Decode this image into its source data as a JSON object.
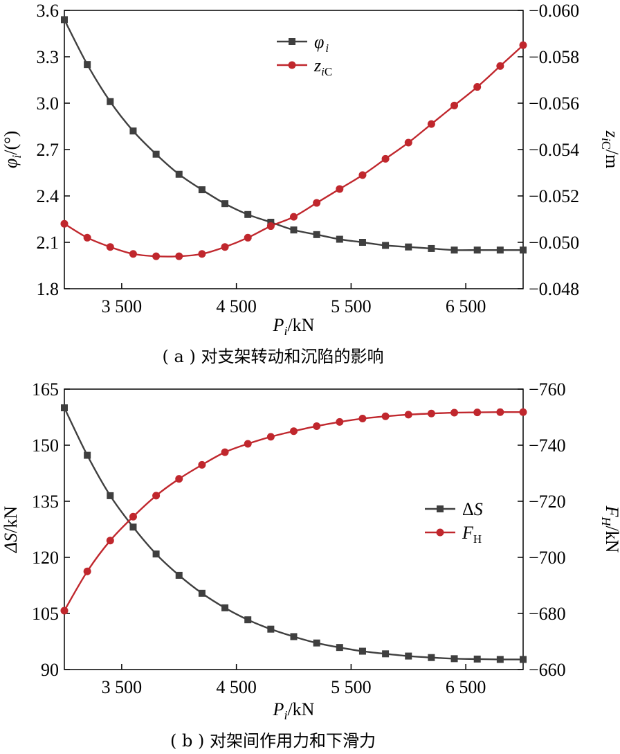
{
  "chart_data": [
    {
      "type": "line",
      "caption": "( a ) 对支架转动和沉陷的影响",
      "xlabel": {
        "base": "P",
        "sub": "i",
        "unit": "/kN"
      },
      "ylabel_left": {
        "base": "φ",
        "sub": "i",
        "unit": "/(°)"
      },
      "ylabel_right": {
        "base": "z",
        "sub": "i",
        "sub2": "C",
        "unit": "/m"
      },
      "xlim": [
        3000,
        7000
      ],
      "xticks": [
        3500,
        4500,
        5500,
        6500
      ],
      "xtick_labels": [
        "3 500",
        "4 500",
        "5 500",
        "6 500"
      ],
      "ylim_left": [
        1.8,
        3.6
      ],
      "yticks_left": [
        1.8,
        2.1,
        2.4,
        2.7,
        3.0,
        3.3,
        3.6
      ],
      "ytick_labels_left": [
        "1.8",
        "2.1",
        "2.4",
        "2.7",
        "3.0",
        "3.3",
        "3.6"
      ],
      "ylim_right": [
        -0.048,
        -0.06
      ],
      "yticks_right": [
        -0.048,
        -0.05,
        -0.052,
        -0.054,
        -0.056,
        -0.058,
        -0.06
      ],
      "ytick_labels_right": [
        "−0.048",
        "−0.050",
        "−0.052",
        "−0.054",
        "−0.056",
        "−0.058",
        "−0.060"
      ],
      "legend_position": "top-center",
      "series": [
        {
          "name": "φ i",
          "legend": {
            "base": "φ",
            "sub": "i"
          },
          "axis": "left",
          "marker": "square",
          "color": "#3f3f3f",
          "x": [
            3000,
            3200,
            3400,
            3600,
            3800,
            4000,
            4200,
            4400,
            4600,
            4800,
            5000,
            5200,
            5400,
            5600,
            5800,
            6000,
            6200,
            6400,
            6600,
            6800,
            7000
          ],
          "values": [
            3.54,
            3.25,
            3.01,
            2.82,
            2.67,
            2.54,
            2.44,
            2.35,
            2.28,
            2.23,
            2.18,
            2.15,
            2.12,
            2.1,
            2.08,
            2.07,
            2.06,
            2.05,
            2.05,
            2.05,
            2.05
          ]
        },
        {
          "name": "z iC",
          "legend": {
            "base": "z",
            "sub": "iC"
          },
          "axis": "right",
          "marker": "circle",
          "color": "#c0272d",
          "x": [
            3000,
            3200,
            3400,
            3600,
            3800,
            4000,
            4200,
            4400,
            4600,
            4800,
            5000,
            5200,
            5400,
            5600,
            5800,
            6000,
            6200,
            6400,
            6600,
            6800,
            7000
          ],
          "values": [
            -0.0508,
            -0.0502,
            -0.0498,
            -0.0495,
            -0.0494,
            -0.0494,
            -0.0495,
            -0.0498,
            -0.0502,
            -0.0507,
            -0.0511,
            -0.0517,
            -0.0523,
            -0.0529,
            -0.0536,
            -0.0543,
            -0.0551,
            -0.0559,
            -0.0567,
            -0.0576,
            -0.0585
          ]
        }
      ]
    },
    {
      "type": "line",
      "caption": "( b ) 对架间作用力和下滑力",
      "xlabel": {
        "base": "P",
        "sub": "i",
        "unit": "/kN"
      },
      "ylabel_left": {
        "base": "ΔS",
        "unit": "/kN"
      },
      "ylabel_right": {
        "base": "F",
        "sub": "H",
        "unit": "/kN"
      },
      "xlim": [
        3000,
        7000
      ],
      "xticks": [
        3500,
        4500,
        5500,
        6500
      ],
      "xtick_labels": [
        "3 500",
        "4 500",
        "5 500",
        "6 500"
      ],
      "ylim_left": [
        90,
        165
      ],
      "yticks_left": [
        90,
        105,
        120,
        135,
        150,
        165
      ],
      "ytick_labels_left": [
        "90",
        "105",
        "120",
        "135",
        "150",
        "165"
      ],
      "ylim_right": [
        -660,
        -760
      ],
      "yticks_right": [
        -660,
        -680,
        -700,
        -720,
        -740,
        -760
      ],
      "ytick_labels_right": [
        "−660",
        "−680",
        "−700",
        "−720",
        "−740",
        "−760"
      ],
      "legend_position": "center-right",
      "series": [
        {
          "name": "ΔS",
          "legend": {
            "base": "ΔS"
          },
          "axis": "left",
          "marker": "square",
          "color": "#3f3f3f",
          "x": [
            3000,
            3200,
            3400,
            3600,
            3800,
            4000,
            4200,
            4400,
            4600,
            4800,
            5000,
            5200,
            5400,
            5600,
            5800,
            6000,
            6200,
            6400,
            6600,
            6800,
            7000
          ],
          "values": [
            160,
            147.3,
            136.5,
            128.1,
            120.9,
            115.2,
            110.4,
            106.5,
            103.3,
            100.8,
            98.8,
            97.1,
            95.9,
            94.9,
            94.2,
            93.6,
            93.2,
            92.9,
            92.8,
            92.7,
            92.7
          ]
        },
        {
          "name": "F H",
          "legend": {
            "base": "F",
            "sub": "H"
          },
          "axis": "right",
          "marker": "circle",
          "color": "#c0272d",
          "x": [
            3000,
            3200,
            3400,
            3600,
            3800,
            4000,
            4200,
            4400,
            4600,
            4800,
            5000,
            5200,
            5400,
            5600,
            5800,
            6000,
            6200,
            6400,
            6600,
            6800,
            7000
          ],
          "values": [
            -681,
            -695,
            -706,
            -714.5,
            -722,
            -728,
            -733,
            -737.5,
            -740.5,
            -743,
            -745,
            -746.8,
            -748.3,
            -749.5,
            -750.3,
            -750.9,
            -751.3,
            -751.6,
            -751.7,
            -751.8,
            -751.8
          ]
        }
      ]
    }
  ]
}
